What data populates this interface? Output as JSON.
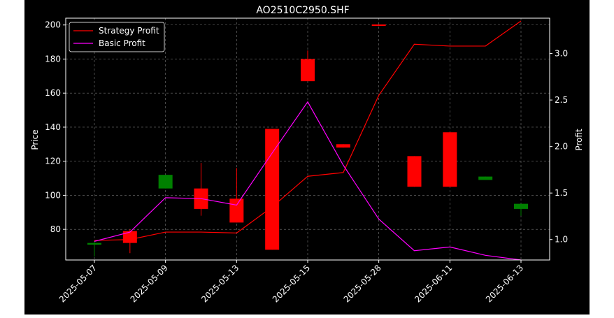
{
  "chart_data": {
    "type": "candlestick",
    "title": "AO2510C2950.SHF",
    "xlabel": "",
    "ylabel": "Price",
    "y2label": "Profit",
    "x_tick_labels": [
      "2025-05-07",
      "2025-05-09",
      "2025-05-13",
      "2025-05-15",
      "2025-05-28",
      "2025-06-11",
      "2025-06-13"
    ],
    "x_tick_indices": [
      0,
      2,
      4,
      6,
      8,
      10,
      12
    ],
    "ylim": [
      62,
      204
    ],
    "y_ticks": [
      80,
      100,
      120,
      140,
      160,
      180,
      200
    ],
    "y2lim": [
      0.78,
      3.38
    ],
    "y2_ticks": [
      1.0,
      1.5,
      2.0,
      2.5,
      3.0
    ],
    "grid": true,
    "legend_position": "upper-left",
    "candles": [
      {
        "open": 72,
        "close": 71,
        "high": 73,
        "low": 64,
        "color": "green"
      },
      {
        "open": 72,
        "close": 79,
        "high": 80,
        "low": 66,
        "color": "red"
      },
      {
        "open": 112,
        "close": 104,
        "high": 112,
        "low": 104,
        "color": "green"
      },
      {
        "open": 92,
        "close": 104,
        "high": 119,
        "low": 88,
        "color": "red"
      },
      {
        "open": 84,
        "close": 98,
        "high": 116,
        "low": 84,
        "color": "red"
      },
      {
        "open": 68,
        "close": 139,
        "high": 139,
        "low": 68,
        "color": "red"
      },
      {
        "open": 167,
        "close": 180,
        "high": 185,
        "low": 167,
        "color": "red"
      },
      {
        "open": 128,
        "close": 130,
        "high": 130,
        "low": 128,
        "color": "red"
      },
      {
        "open": 199.5,
        "close": 200.3,
        "high": 200.3,
        "low": 199.5,
        "color": "red"
      },
      {
        "open": 105,
        "close": 123,
        "high": 123,
        "low": 105,
        "color": "red"
      },
      {
        "open": 105,
        "close": 137,
        "high": 137,
        "low": 105,
        "color": "red"
      },
      {
        "open": 111,
        "close": 109,
        "high": 111,
        "low": 109,
        "color": "green"
      },
      {
        "open": 95,
        "close": 92,
        "high": 95,
        "low": 88,
        "color": "green"
      }
    ],
    "series": [
      {
        "name": "Strategy Profit",
        "color": "#ff0000",
        "axis": "right",
        "values": [
          0.99,
          1.0,
          1.08,
          1.08,
          1.07,
          1.35,
          1.68,
          1.72,
          2.55,
          3.1,
          3.08,
          3.08,
          3.35
        ]
      },
      {
        "name": "Basic Profit",
        "color": "#ff00ff",
        "axis": "right",
        "values": [
          0.98,
          1.08,
          1.45,
          1.44,
          1.37,
          1.93,
          2.48,
          1.8,
          1.22,
          0.88,
          0.92,
          0.83,
          0.78
        ]
      }
    ],
    "colors": {
      "up": "#ff0000",
      "down": "#008000",
      "background": "#000000",
      "grid": "#777777"
    }
  }
}
